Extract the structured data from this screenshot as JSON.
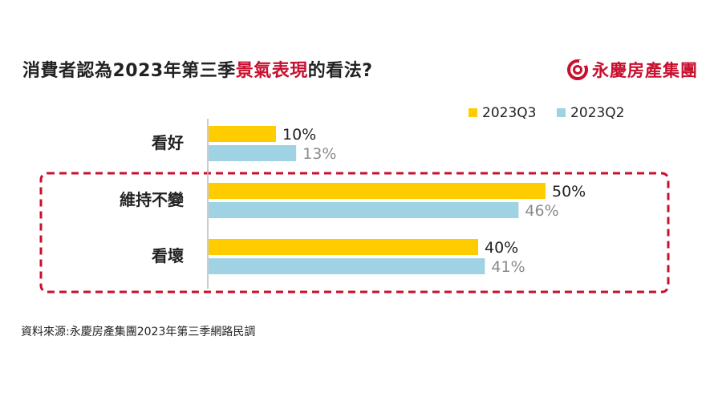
{
  "header": {
    "title_pre": "消費者認為2023年第三季",
    "title_highlight": "景氣表現",
    "title_post": "的看法?"
  },
  "brand": {
    "logo_icon": "swirl-logo-icon",
    "name": "永慶房產集團",
    "color": "#c8102e"
  },
  "chart_data": {
    "type": "bar",
    "orientation": "horizontal",
    "categories": [
      "看好",
      "維持不變",
      "看壞"
    ],
    "series": [
      {
        "name": "2023Q3",
        "values": [
          10,
          50,
          40
        ],
        "labels": [
          "10%",
          "50%",
          "40%"
        ],
        "color": "#ffcc00",
        "label_color": "#222222"
      },
      {
        "name": "2023Q2",
        "values": [
          13,
          46,
          41
        ],
        "labels": [
          "13%",
          "46%",
          "41%"
        ],
        "color": "#9fd3e3",
        "label_color": "#8a8a8a"
      }
    ],
    "unit": "%",
    "xlim": [
      0,
      65
    ],
    "legend": "top-right",
    "grid": false,
    "highlight": {
      "style": "dashed-box",
      "color": "#c8102e",
      "categories": [
        "維持不變",
        "看壞"
      ]
    }
  },
  "footer": {
    "source": "資料來源:永慶房產集團2023年第三季網路民調"
  }
}
